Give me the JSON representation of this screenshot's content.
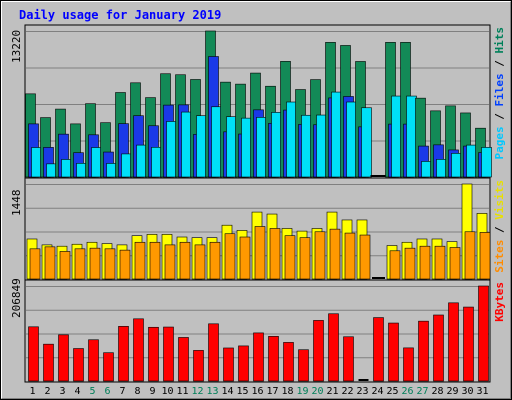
{
  "chart_data": {
    "type": "bar",
    "title": "Daily usage for January 2019",
    "categories": [
      "1",
      "2",
      "3",
      "4",
      "5",
      "6",
      "7",
      "8",
      "9",
      "10",
      "11",
      "12",
      "13",
      "14",
      "15",
      "16",
      "17",
      "18",
      "19",
      "20",
      "21",
      "22",
      "23",
      "24",
      "25",
      "26",
      "27",
      "28",
      "29",
      "30",
      "31"
    ],
    "weekend_days": [
      "5",
      "6",
      "12",
      "13",
      "19",
      "20",
      "26",
      "27"
    ],
    "panels": [
      {
        "id": "hits",
        "max_label": "13220",
        "ylim": [
          0,
          13220
        ],
        "legend": [
          {
            "label": "Pages",
            "color": "#00c8ff"
          },
          {
            "label": "Files",
            "color": "#0040ff"
          },
          {
            "label": "Hits",
            "color": "#00805a"
          }
        ],
        "legend_separator": " / ",
        "series": [
          {
            "name": "Hits",
            "color": "#138a57",
            "values": [
              7530,
              5380,
              6150,
              4810,
              6640,
              4920,
              7650,
              8530,
              7190,
              9350,
              9260,
              8830,
              13220,
              8590,
              8410,
              9410,
              8220,
              10470,
              7920,
              8820,
              12190,
              11910,
              10460,
              0,
              12190,
              12190,
              7140,
              5990,
              6440,
              5800,
              4420
            ]
          },
          {
            "name": "Files",
            "color": "#1a39e8",
            "values": [
              4810,
              2680,
              3880,
              2200,
              3820,
              2260,
              4830,
              5550,
              4640,
              6510,
              6530,
              3860,
              10910,
              4090,
              3890,
              6080,
              4860,
              6060,
              4760,
              4730,
              7160,
              7290,
              4540,
              0,
              4790,
              4790,
              2800,
              2910,
              2450,
              2800,
              2210
            ]
          },
          {
            "name": "Pages",
            "color": "#00e0f8",
            "values": [
              2670,
              1190,
              1590,
              1240,
              2670,
              1230,
              2090,
              2890,
              2690,
              5030,
              5880,
              5550,
              6360,
              5460,
              5330,
              5400,
              5850,
              6790,
              5590,
              5610,
              7690,
              6790,
              6270,
              0,
              7330,
              7330,
              1410,
              1600,
              2140,
              2890,
              2680
            ]
          }
        ]
      },
      {
        "id": "visits",
        "max_label": "1448",
        "ylim": [
          0,
          1448
        ],
        "legend": [
          {
            "label": "Sites",
            "color": "#ff8c00"
          },
          {
            "label": "Visits",
            "color": "#e8e000"
          }
        ],
        "legend_separator": " / ",
        "series": [
          {
            "name": "Visits",
            "color": "#ffff00",
            "values": [
              610,
              520,
              500,
              530,
              560,
              540,
              520,
              660,
              680,
              680,
              640,
              630,
              630,
              820,
              740,
              1020,
              990,
              770,
              730,
              770,
              1020,
              900,
              900,
              0,
              510,
              560,
              610,
              610,
              570,
              1448,
              1000
            ]
          },
          {
            "name": "Sites",
            "color": "#ff9900",
            "values": [
              460,
              490,
              420,
              460,
              470,
              460,
              440,
              560,
              560,
              520,
              560,
              520,
              560,
              690,
              640,
              800,
              770,
              660,
              630,
              720,
              760,
              700,
              670,
              0,
              430,
              470,
              500,
              500,
              480,
              720,
              710
            ]
          }
        ]
      },
      {
        "id": "kbytes",
        "max_label": "206849",
        "ylim": [
          0,
          206849
        ],
        "legend": [
          {
            "label": "KBytes",
            "color": "#ff0000"
          }
        ],
        "legend_separator": "",
        "series": [
          {
            "name": "KBytes",
            "color": "#ff0000",
            "values": [
              118000,
              80200,
              100500,
              70700,
              89800,
              61600,
              119000,
              135400,
              117000,
              117500,
              94800,
              66600,
              124500,
              71900,
              76400,
              104700,
              97200,
              84000,
              68100,
              131900,
              146400,
              96300,
              0,
              138100,
              126200,
              72100,
              130300,
              143700,
              170200,
              161000,
              206849
            ]
          }
        ]
      }
    ]
  }
}
